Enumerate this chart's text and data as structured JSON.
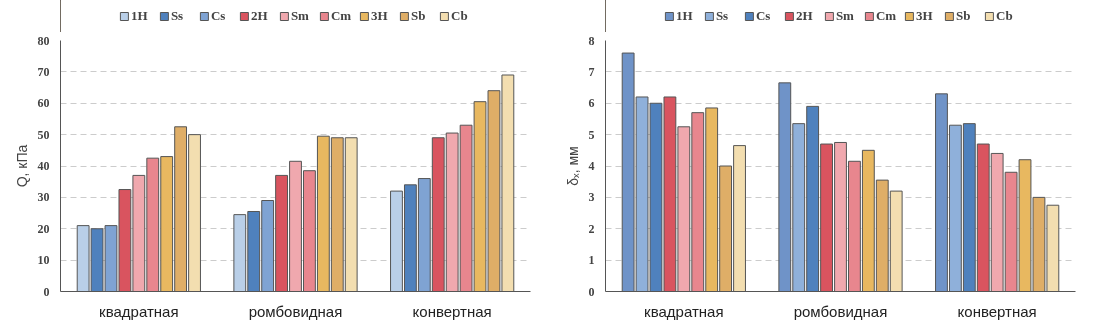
{
  "chart_data": [
    {
      "type": "bar",
      "ylabel": "Q, кПа",
      "categories": [
        "квадратная",
        "ромбовидная",
        "конвертная"
      ],
      "ylim": [
        0,
        80
      ],
      "yticks": [
        0,
        10,
        20,
        30,
        40,
        50,
        60,
        70,
        80
      ],
      "grid": "y",
      "legend": "top",
      "series": [
        {
          "name": "1H",
          "color": "#b9cfe8",
          "values": [
            21,
            24.5,
            32
          ]
        },
        {
          "name": "Ss",
          "color": "#4f81bd",
          "values": [
            20,
            25.5,
            34
          ]
        },
        {
          "name": "Cs",
          "color": "#7fa3d3",
          "values": [
            21,
            29,
            36
          ]
        },
        {
          "name": "2H",
          "color": "#d9545f",
          "values": [
            32.5,
            37,
            49
          ]
        },
        {
          "name": "Sm",
          "color": "#f0a8ae",
          "values": [
            37,
            41.5,
            50.5
          ]
        },
        {
          "name": "Cm",
          "color": "#e8868e",
          "values": [
            42.5,
            38.5,
            53
          ]
        },
        {
          "name": "3H",
          "color": "#e8b860",
          "values": [
            43,
            49.5,
            60.5
          ]
        },
        {
          "name": "Sb",
          "color": "#dfae67",
          "values": [
            52.5,
            49,
            64
          ]
        },
        {
          "name": "Cb",
          "color": "#f3deb0",
          "values": [
            50,
            49,
            69
          ]
        }
      ]
    },
    {
      "type": "bar",
      "ylabel": "δₓ, мм",
      "categories": [
        "квадратная",
        "ромбовидная",
        "конвертная"
      ],
      "ylim": [
        0,
        8
      ],
      "yticks": [
        0,
        1,
        2,
        3,
        4,
        5,
        6,
        7,
        8
      ],
      "grid": "y",
      "legend": "top",
      "series": [
        {
          "name": "1H",
          "color": "#6f93c8",
          "values": [
            7.6,
            6.65,
            6.3
          ]
        },
        {
          "name": "Ss",
          "color": "#8fb0da",
          "values": [
            6.2,
            5.35,
            5.3
          ]
        },
        {
          "name": "Cs",
          "color": "#4f81bd",
          "values": [
            6.0,
            5.9,
            5.35
          ]
        },
        {
          "name": "2H",
          "color": "#d9545f",
          "values": [
            6.2,
            4.7,
            4.7
          ]
        },
        {
          "name": "Sm",
          "color": "#f0a8ae",
          "values": [
            5.25,
            4.75,
            4.4
          ]
        },
        {
          "name": "Cm",
          "color": "#e8868e",
          "values": [
            5.7,
            4.15,
            3.8
          ]
        },
        {
          "name": "3H",
          "color": "#e8b860",
          "values": [
            5.85,
            4.5,
            4.2
          ]
        },
        {
          "name": "Sb",
          "color": "#dfae67",
          "values": [
            4.0,
            3.55,
            3.0
          ]
        },
        {
          "name": "Cb",
          "color": "#f3deb0",
          "values": [
            4.65,
            3.2,
            2.75
          ]
        }
      ]
    }
  ]
}
